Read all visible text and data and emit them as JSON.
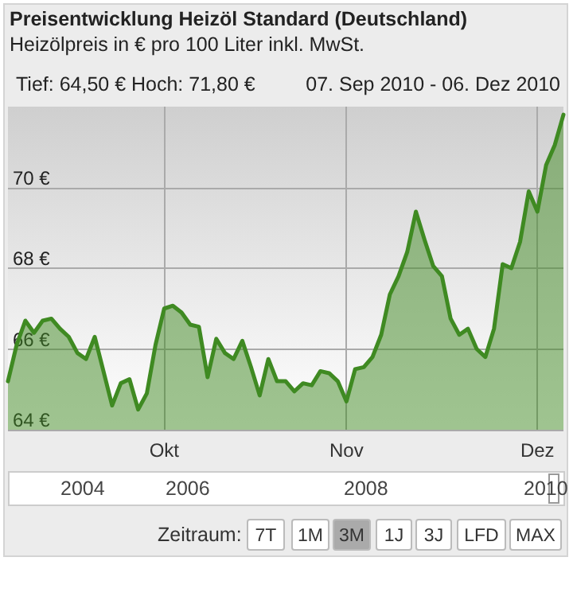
{
  "chart_data": {
    "type": "area",
    "title": "Preisentwicklung Heizöl Standard (Deutschland)",
    "subtitle": "Heizölpreis in € pro 100 Liter inkl. MwSt.",
    "annotations": [
      "Tief: 64,50 € Hoch: 71,80 €",
      "07. Sep 2010 - 06. Dez 2010",
      "2004",
      "2006",
      "2008",
      "2010",
      "Zeitraum:",
      "7T",
      "1M",
      "3M",
      "1J",
      "3J",
      "LFD",
      "MAX"
    ],
    "categories": [
      null,
      null,
      null,
      null,
      null,
      null,
      null,
      null,
      null,
      null,
      null,
      null,
      null,
      null,
      null,
      null,
      null,
      null,
      "Okt",
      null,
      null,
      null,
      null,
      null,
      null,
      null,
      null,
      null,
      null,
      null,
      null,
      null,
      null,
      null,
      null,
      null,
      null,
      null,
      null,
      "Nov",
      null,
      null,
      null,
      null,
      null,
      null,
      null,
      null,
      null,
      null,
      null,
      null,
      null,
      null,
      null,
      null,
      null,
      null,
      null,
      null,
      null,
      "Dez",
      null,
      null,
      null
    ],
    "series": [
      {
        "color": "#3f8a22",
        "values": [
          65.2,
          66.1,
          66.7,
          66.4,
          66.7,
          66.75,
          66.5,
          66.3,
          65.9,
          65.75,
          66.3,
          65.45,
          64.6,
          65.15,
          65.25,
          64.5,
          64.9,
          66.1,
          67.0,
          67.07,
          66.9,
          66.6,
          66.55,
          65.3,
          66.25,
          65.9,
          65.75,
          66.2,
          65.55,
          64.85,
          65.75,
          65.2,
          65.2,
          64.95,
          65.15,
          65.1,
          65.45,
          65.4,
          65.2,
          64.7,
          65.5,
          65.55,
          65.8,
          66.35,
          67.35,
          67.8,
          68.4,
          69.4,
          68.7,
          68.05,
          67.8,
          66.75,
          66.35,
          66.5,
          66.0,
          65.8,
          66.5,
          68.1,
          68.0,
          68.65,
          69.9,
          69.4,
          70.55,
          71.05,
          71.8
        ]
      }
    ],
    "ylim": [
      64,
      72
    ],
    "yticks": [
      {
        "value": 64,
        "label": "64 €"
      },
      {
        "value": 66,
        "label": "66 €"
      },
      {
        "value": 68,
        "label": "68 €"
      },
      {
        "value": 70,
        "label": "70 €"
      }
    ],
    "grid": true
  }
}
